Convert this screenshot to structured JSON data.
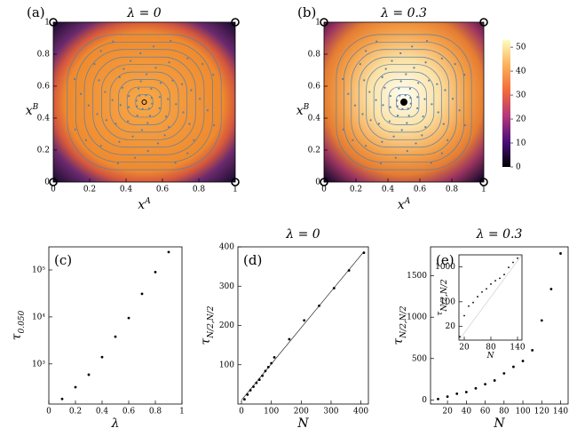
{
  "chart_data": [
    {
      "type": "streamplot",
      "panel_label": "(a)",
      "title": "λ = 0",
      "xlabel": "x",
      "xlabel_sup": "A",
      "ylabel": "x",
      "ylabel_sup": "B",
      "xlim": [
        0,
        1
      ],
      "ylim": [
        0,
        1
      ],
      "xticks": [
        0,
        0.2,
        0.4,
        0.6,
        0.8,
        1
      ],
      "yticks": [
        0,
        0.2,
        0.4,
        0.6,
        0.8,
        1
      ],
      "line_color": "#5b7fa6",
      "center_color": "#f29a3a"
    },
    {
      "type": "streamplot",
      "panel_label": "(b)",
      "title": "λ = 0.3",
      "xlabel": "x",
      "xlabel_sup": "A",
      "ylabel": "x",
      "ylabel_sup": "B",
      "xlim": [
        0,
        1
      ],
      "ylim": [
        0,
        1
      ],
      "xticks": [
        0,
        0.2,
        0.4,
        0.6,
        0.8,
        1
      ],
      "yticks": [
        0,
        0.2,
        0.4,
        0.6,
        0.8,
        1
      ],
      "line_color": "#5b7fa6",
      "center_color": "#fffbe8",
      "colorbar": {
        "lim": [
          0,
          53
        ],
        "ticks": [
          0,
          10,
          20,
          30,
          40,
          50
        ]
      }
    },
    {
      "type": "scatter",
      "panel_label": "(c)",
      "xlabel": "λ",
      "ylabel": "τ",
      "ylabel_sub": "0.050",
      "log_y": true,
      "color": "#000000",
      "x": [
        0.1,
        0.2,
        0.3,
        0.4,
        0.5,
        0.6,
        0.7,
        0.8,
        0.9
      ],
      "values": [
        180,
        320,
        590,
        1400,
        3800,
        9500,
        31000,
        90000,
        240000
      ],
      "xlim": [
        0,
        1
      ],
      "ylim": [
        140,
        310000
      ],
      "xticks": [
        0,
        0.2,
        0.4,
        0.6,
        0.8,
        1
      ],
      "yticks": [
        {
          "value": 1000,
          "label": "10³"
        },
        {
          "value": 10000,
          "label": "10⁴"
        },
        {
          "value": 100000,
          "label": "10⁵"
        }
      ]
    },
    {
      "type": "scatter",
      "panel_label": "(d)",
      "title": "λ = 0",
      "xlabel": "N",
      "ylabel": "τ",
      "ylabel_sub": "N/2,N/2",
      "color": "#000000",
      "x": [
        10,
        20,
        30,
        40,
        50,
        60,
        70,
        80,
        90,
        100,
        110,
        160,
        210,
        260,
        310,
        360,
        410
      ],
      "values": [
        12,
        24,
        35,
        44,
        54,
        62,
        72,
        84,
        94,
        104,
        119,
        165,
        213,
        250,
        295,
        340,
        385
      ],
      "fit": {
        "x": [
          0,
          410
        ],
        "values": [
          10,
          388
        ]
      },
      "xlim": [
        -12,
        425
      ],
      "ylim": [
        0,
        400
      ],
      "xticks": [
        0,
        100,
        200,
        300,
        400
      ],
      "yticks": [
        100,
        200,
        300,
        400
      ]
    },
    {
      "type": "scatter",
      "panel_label": "(e)",
      "title": "λ = 0.3",
      "xlabel": "N",
      "ylabel": "τ",
      "ylabel_sub": "N/2,N/2",
      "color": "#000000",
      "x": [
        10,
        20,
        30,
        40,
        50,
        60,
        70,
        80,
        90,
        100,
        110,
        120,
        130,
        140
      ],
      "values": [
        10,
        40,
        75,
        95,
        140,
        190,
        235,
        320,
        400,
        470,
        600,
        960,
        1340,
        1770
      ],
      "xlim": [
        2,
        148
      ],
      "ylim": [
        -50,
        1850
      ],
      "xticks": [
        20,
        40,
        60,
        80,
        100,
        120,
        140
      ],
      "yticks": [
        0,
        500,
        1000,
        1500
      ],
      "inset": {
        "xlabel": "N",
        "ylabel": "τ",
        "ylabel_sub": "N/2,N/2",
        "log_y": true,
        "xlim": [
          8,
          150
        ],
        "ylim": [
          8,
          2200
        ],
        "xticks": [
          20,
          80,
          140
        ],
        "yticks": [
          20,
          100,
          1000
        ]
      }
    }
  ]
}
